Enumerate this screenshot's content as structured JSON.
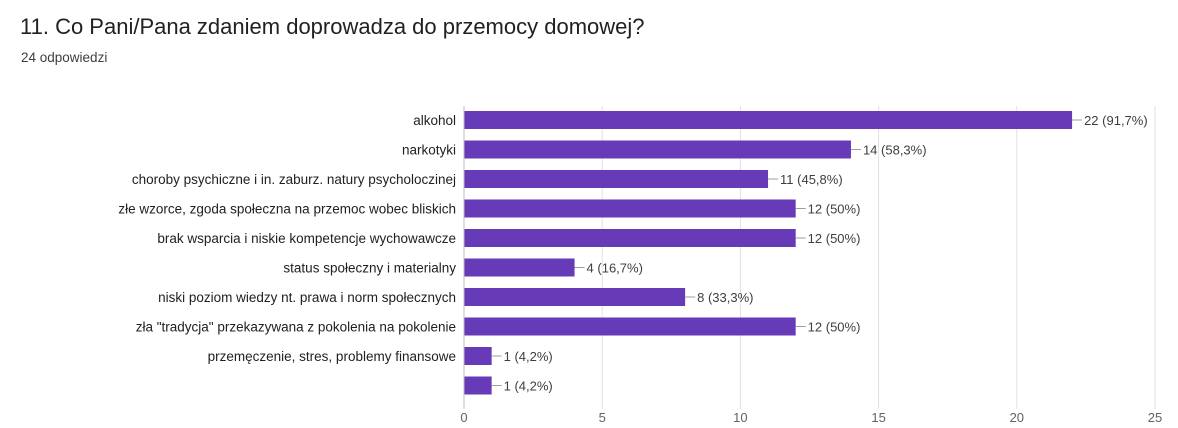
{
  "header": {
    "title": "11. Co Pani/Pana zdaniem doprowadza do przemocy domowej?",
    "responses": "24 odpowiedzi"
  },
  "colors": {
    "bar": "#673ab7",
    "grid": "#e0e0e0",
    "label_text": "#202124",
    "value_text": "#3c4043",
    "tick_text": "#5f6368"
  },
  "chart_data": {
    "type": "bar",
    "orientation": "horizontal",
    "categories": [
      "alkohol",
      "narkotyki",
      "choroby psychiczne i in. zaburz. natury psycholoczinej",
      "złe wzorce, zgoda społeczna na przemoc wobec bliskich",
      "brak wsparcia i niskie kompetencje wychowawcze",
      "status społeczny i materialny",
      "niski poziom wiedzy nt. prawa i norm społecznych",
      "zła \"tradycja\" przekazywana z pokolenia na pokolenie",
      "przemęczenie, stres, problemy finansowe",
      ""
    ],
    "values": [
      22,
      14,
      11,
      12,
      12,
      4,
      8,
      12,
      1,
      1
    ],
    "value_labels": [
      "22 (91,7%)",
      "14 (58,3%)",
      "11 (45,8%)",
      "12 (50%)",
      "12 (50%)",
      "4 (16,7%)",
      "8 (33,3%)",
      "12 (50%)",
      "1 (4,2%)",
      "1 (4,2%)"
    ],
    "xlim": [
      0,
      25
    ],
    "xticks": [
      0,
      5,
      10,
      15,
      20,
      25
    ],
    "grid": true,
    "legend": "none"
  }
}
